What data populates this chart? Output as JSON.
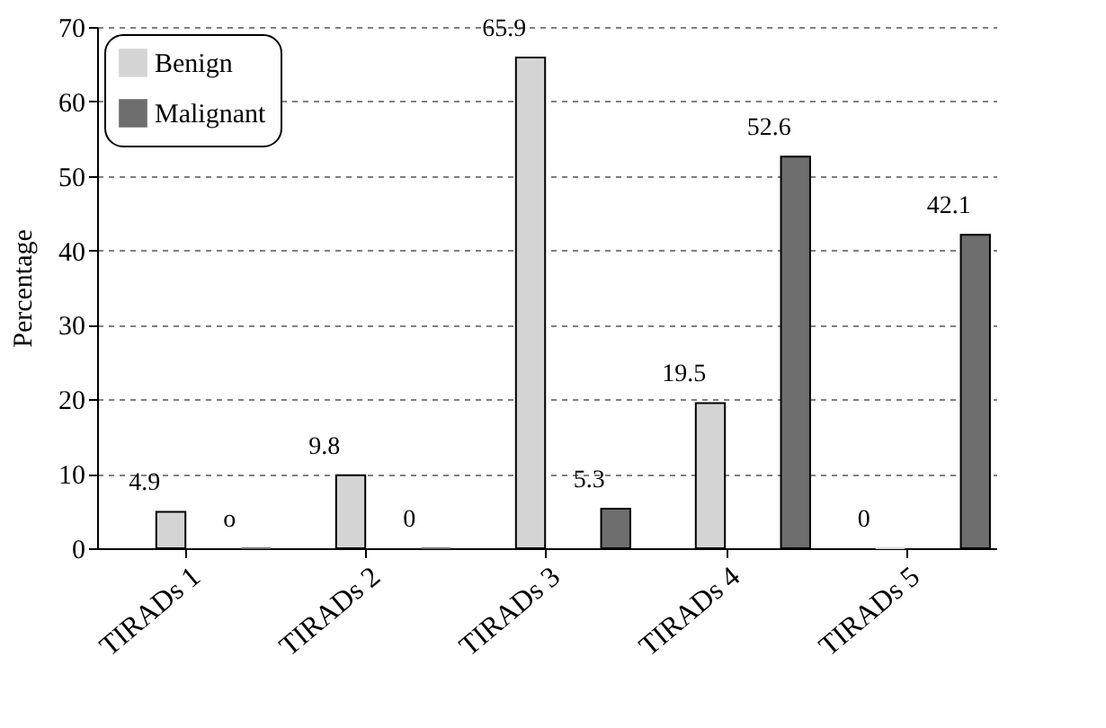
{
  "chart_data": {
    "type": "bar",
    "ylabel": "Percentage",
    "categories": [
      "TIRADs 1",
      "TIRADs 2",
      "TIRADs 3",
      "TIRADs 4",
      "TIRADs 5"
    ],
    "series": [
      {
        "name": "Benign",
        "color": "#d4d4d4",
        "values": [
          4.9,
          9.8,
          65.9,
          19.5,
          0
        ],
        "value_labels": [
          "4.9",
          "9.8",
          "65.9",
          "19.5",
          "0"
        ]
      },
      {
        "name": "Malignant",
        "color": "#6e6e6e",
        "values": [
          0,
          0,
          5.3,
          52.6,
          42.1
        ],
        "value_labels": [
          "o",
          "0",
          "5.3",
          "52.6",
          "42.1"
        ]
      }
    ],
    "ylim": [
      0,
      70
    ],
    "yticks": [
      0,
      10,
      20,
      30,
      40,
      50,
      60,
      70
    ],
    "grid": "y",
    "legend": "top left"
  }
}
